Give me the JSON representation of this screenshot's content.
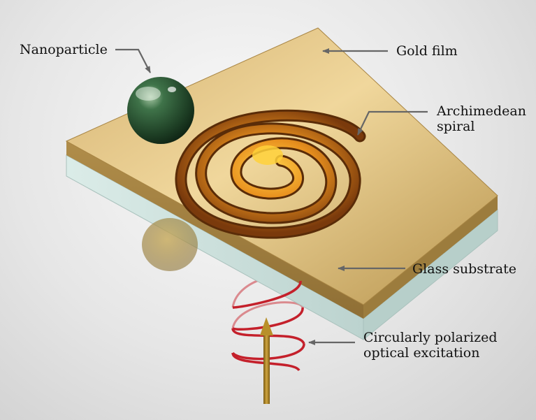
{
  "labels": {
    "nanoparticle": "Nanoparticle",
    "gold_film": "Gold film",
    "spiral_line1": "Archimedean",
    "spiral_line2": "spiral",
    "glass_substrate": "Glass substrate",
    "excitation_line1": "Circularly polarized",
    "excitation_line2": "optical excitation"
  },
  "colors": {
    "gold": "#c9a561",
    "glass": "#cfe3df",
    "nanoparticle": "#2f5b38",
    "helix": "#c8202a",
    "arrow": "#a07818",
    "annotation_arrow": "#666666"
  }
}
